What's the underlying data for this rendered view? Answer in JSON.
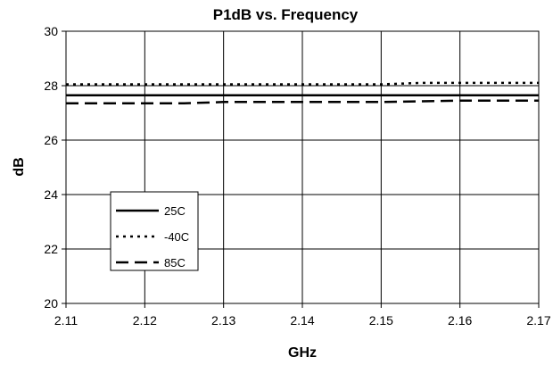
{
  "chart_data": {
    "type": "line",
    "title": "P1dB vs. Frequency",
    "xlabel": "GHz",
    "ylabel": "dB",
    "xlim": [
      2.11,
      2.17
    ],
    "ylim": [
      20,
      30
    ],
    "x_ticks": [
      "2.11",
      "2.12",
      "2.13",
      "2.14",
      "2.15",
      "2.16",
      "2.17"
    ],
    "y_ticks": [
      "20",
      "22",
      "24",
      "26",
      "28",
      "30"
    ],
    "grid": true,
    "legend_position": "bottom-left",
    "series": [
      {
        "name": "25C",
        "line_style": "solid",
        "x": [
          2.11,
          2.12,
          2.13,
          2.14,
          2.15,
          2.16,
          2.17
        ],
        "y": [
          27.65,
          27.65,
          27.65,
          27.65,
          27.65,
          27.65,
          27.65
        ]
      },
      {
        "name": "-40C",
        "line_style": "dotted",
        "x": [
          2.11,
          2.12,
          2.13,
          2.14,
          2.15,
          2.155,
          2.16,
          2.17
        ],
        "y": [
          28.05,
          28.05,
          28.05,
          28.05,
          28.05,
          28.1,
          28.1,
          28.1
        ]
      },
      {
        "name": "85C",
        "line_style": "dashed",
        "x": [
          2.11,
          2.12,
          2.125,
          2.13,
          2.14,
          2.15,
          2.16,
          2.17
        ],
        "y": [
          27.35,
          27.35,
          27.35,
          27.4,
          27.4,
          27.4,
          27.45,
          27.45
        ]
      }
    ]
  }
}
